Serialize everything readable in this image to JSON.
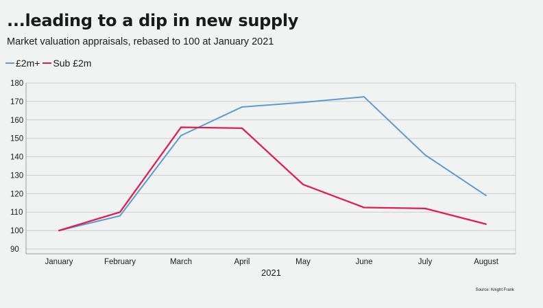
{
  "chart_data": {
    "type": "line",
    "title": "...leading to a dip in new supply",
    "subtitle": "Market valuation appraisals, rebased to 100 at January 2021",
    "categories": [
      "January",
      "February",
      "March",
      "April",
      "May",
      "June",
      "July",
      "August"
    ],
    "xlabel": "2021",
    "ylabel": "",
    "ylim": [
      90,
      180
    ],
    "yticks": [
      "90",
      "100",
      "110",
      "120",
      "130",
      "140",
      "150",
      "160",
      "170",
      "180"
    ],
    "grid": true,
    "legend_position": "top-left",
    "series": [
      {
        "name": "£2m+",
        "color": "#5b9bd5",
        "values": [
          100,
          108,
          151.5,
          167,
          169.5,
          172.5,
          141,
          119
        ]
      },
      {
        "name": "Sub £2m",
        "color": "#e31c4e",
        "values": [
          100,
          110,
          156,
          155.5,
          125,
          112.5,
          112,
          103.5
        ]
      }
    ],
    "source": "Source: Knight Frank"
  }
}
